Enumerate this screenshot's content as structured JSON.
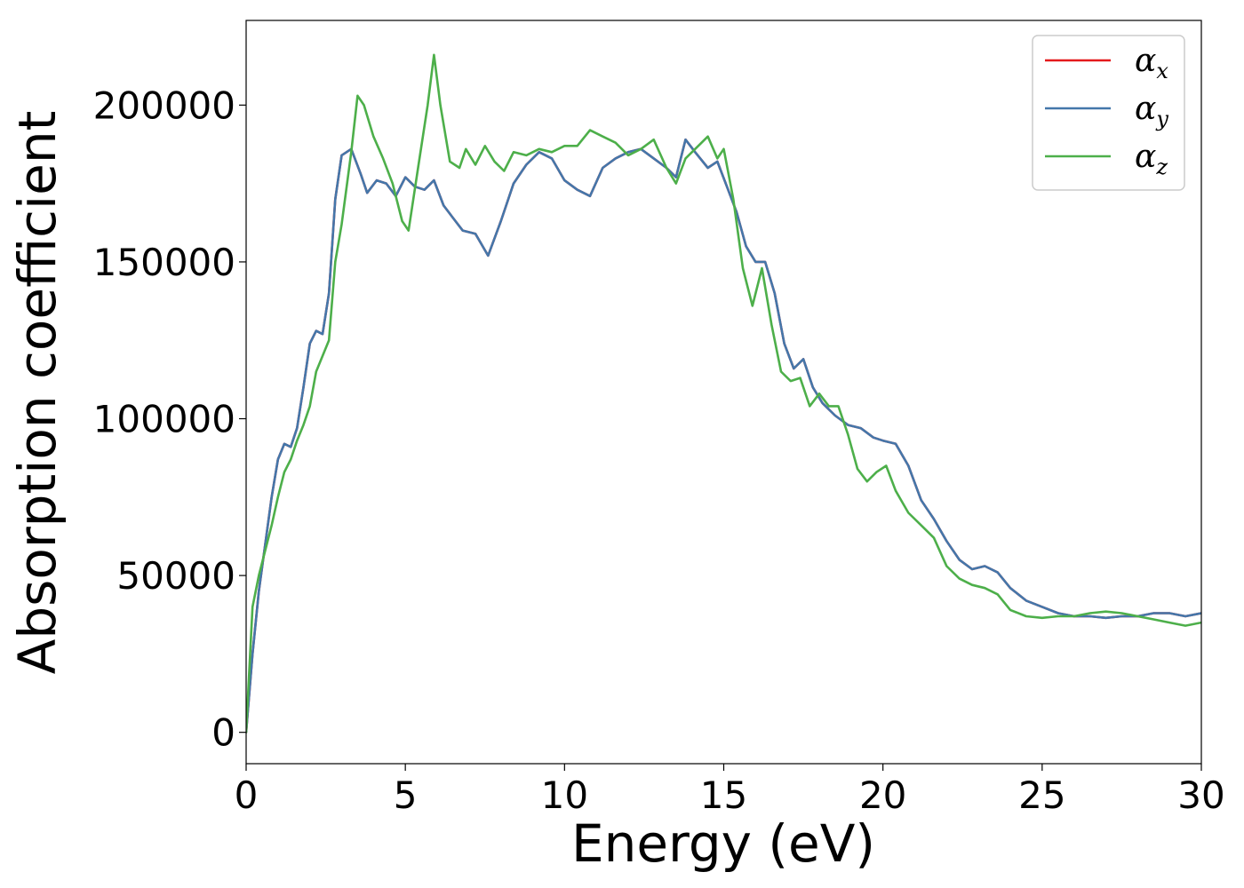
{
  "chart_data": {
    "type": "line",
    "title": "",
    "xlabel": "Energy (eV)",
    "ylabel": "Absorption coefficient",
    "xlim": [
      0,
      30
    ],
    "ylim": [
      -10000,
      227000
    ],
    "xticks": [
      0,
      5,
      10,
      15,
      20,
      25,
      30
    ],
    "xtick_labels": [
      "0",
      "5",
      "10",
      "15",
      "20",
      "25",
      "30"
    ],
    "yticks": [
      0,
      50000,
      100000,
      150000,
      200000
    ],
    "ytick_labels": [
      "0",
      "50000",
      "100000",
      "150000",
      "200000"
    ],
    "grid": false,
    "legend_position": "top-right",
    "series": [
      {
        "name": "α_x",
        "legend_base": "α",
        "legend_sub": "x",
        "color": "#e41a1c",
        "x": [
          0,
          0.2,
          0.4,
          0.6,
          0.8,
          1.0,
          1.2,
          1.4,
          1.6,
          1.8,
          2.0,
          2.2,
          2.4,
          2.6,
          2.8,
          3.0,
          3.3,
          3.6,
          3.8,
          4.1,
          4.4,
          4.7,
          5.0,
          5.3,
          5.6,
          5.9,
          6.2,
          6.5,
          6.8,
          7.2,
          7.6,
          8.0,
          8.4,
          8.8,
          9.2,
          9.6,
          10.0,
          10.4,
          10.8,
          11.2,
          11.6,
          12.0,
          12.4,
          12.8,
          13.2,
          13.5,
          13.8,
          14.1,
          14.5,
          14.8,
          15.1,
          15.4,
          15.7,
          16.0,
          16.3,
          16.6,
          16.9,
          17.2,
          17.5,
          17.8,
          18.1,
          18.5,
          18.9,
          19.3,
          19.7,
          20.0,
          20.4,
          20.8,
          21.2,
          21.6,
          22.0,
          22.4,
          22.8,
          23.2,
          23.6,
          24.0,
          24.5,
          25.0,
          25.5,
          26.0,
          26.5,
          27.0,
          27.5,
          28.0,
          28.5,
          29.0,
          29.5,
          30.0
        ],
        "y": [
          0,
          25000,
          45000,
          60000,
          75000,
          87000,
          92000,
          91000,
          97000,
          110000,
          124000,
          128000,
          127000,
          140000,
          170000,
          184000,
          186000,
          178000,
          172000,
          176000,
          175000,
          171000,
          177000,
          174000,
          173000,
          176000,
          168000,
          164000,
          160000,
          159000,
          152000,
          163000,
          175000,
          181000,
          185000,
          183000,
          176000,
          173000,
          171000,
          180000,
          183000,
          185000,
          186000,
          183000,
          180000,
          177000,
          189000,
          185000,
          180000,
          182000,
          174000,
          166000,
          155000,
          150000,
          150000,
          140000,
          124000,
          116000,
          119000,
          110000,
          105000,
          101000,
          98000,
          97000,
          94000,
          93000,
          92000,
          85000,
          74000,
          68000,
          61000,
          55000,
          52000,
          53000,
          51000,
          46000,
          42000,
          40000,
          38000,
          37000,
          37000,
          36500,
          37000,
          37000,
          38000,
          38000,
          37000,
          38000
        ]
      },
      {
        "name": "α_y",
        "legend_base": "α",
        "legend_sub": "y",
        "color": "#4477aa",
        "x": [
          0,
          0.2,
          0.4,
          0.6,
          0.8,
          1.0,
          1.2,
          1.4,
          1.6,
          1.8,
          2.0,
          2.2,
          2.4,
          2.6,
          2.8,
          3.0,
          3.3,
          3.6,
          3.8,
          4.1,
          4.4,
          4.7,
          5.0,
          5.3,
          5.6,
          5.9,
          6.2,
          6.5,
          6.8,
          7.2,
          7.6,
          8.0,
          8.4,
          8.8,
          9.2,
          9.6,
          10.0,
          10.4,
          10.8,
          11.2,
          11.6,
          12.0,
          12.4,
          12.8,
          13.2,
          13.5,
          13.8,
          14.1,
          14.5,
          14.8,
          15.1,
          15.4,
          15.7,
          16.0,
          16.3,
          16.6,
          16.9,
          17.2,
          17.5,
          17.8,
          18.1,
          18.5,
          18.9,
          19.3,
          19.7,
          20.0,
          20.4,
          20.8,
          21.2,
          21.6,
          22.0,
          22.4,
          22.8,
          23.2,
          23.6,
          24.0,
          24.5,
          25.0,
          25.5,
          26.0,
          26.5,
          27.0,
          27.5,
          28.0,
          28.5,
          29.0,
          29.5,
          30.0
        ],
        "y": [
          0,
          25000,
          45000,
          60000,
          75000,
          87000,
          92000,
          91000,
          97000,
          110000,
          124000,
          128000,
          127000,
          140000,
          170000,
          184000,
          186000,
          178000,
          172000,
          176000,
          175000,
          171000,
          177000,
          174000,
          173000,
          176000,
          168000,
          164000,
          160000,
          159000,
          152000,
          163000,
          175000,
          181000,
          185000,
          183000,
          176000,
          173000,
          171000,
          180000,
          183000,
          185000,
          186000,
          183000,
          180000,
          177000,
          189000,
          185000,
          180000,
          182000,
          174000,
          166000,
          155000,
          150000,
          150000,
          140000,
          124000,
          116000,
          119000,
          110000,
          105000,
          101000,
          98000,
          97000,
          94000,
          93000,
          92000,
          85000,
          74000,
          68000,
          61000,
          55000,
          52000,
          53000,
          51000,
          46000,
          42000,
          40000,
          38000,
          37000,
          37000,
          36500,
          37000,
          37000,
          38000,
          38000,
          37000,
          38000
        ]
      },
      {
        "name": "α_z",
        "legend_base": "α",
        "legend_sub": "z",
        "color": "#4daf4a",
        "x": [
          0,
          0.2,
          0.4,
          0.6,
          0.8,
          1.0,
          1.2,
          1.4,
          1.6,
          1.8,
          2.0,
          2.2,
          2.4,
          2.6,
          2.8,
          3.0,
          3.3,
          3.5,
          3.7,
          4.0,
          4.3,
          4.6,
          4.9,
          5.1,
          5.4,
          5.7,
          5.9,
          6.1,
          6.4,
          6.7,
          6.9,
          7.2,
          7.5,
          7.8,
          8.1,
          8.4,
          8.8,
          9.2,
          9.6,
          10.0,
          10.4,
          10.8,
          11.2,
          11.6,
          12.0,
          12.4,
          12.8,
          13.2,
          13.5,
          13.8,
          14.1,
          14.5,
          14.8,
          15.0,
          15.3,
          15.6,
          15.9,
          16.2,
          16.5,
          16.8,
          17.1,
          17.4,
          17.7,
          18.0,
          18.3,
          18.6,
          18.9,
          19.2,
          19.5,
          19.8,
          20.1,
          20.4,
          20.8,
          21.2,
          21.6,
          22.0,
          22.4,
          22.8,
          23.2,
          23.6,
          24.0,
          24.5,
          25.0,
          25.5,
          26.0,
          26.5,
          27.0,
          27.5,
          28.0,
          28.5,
          29.0,
          29.5,
          30.0
        ],
        "y": [
          0,
          40000,
          50000,
          58000,
          66000,
          75000,
          83000,
          87000,
          93000,
          98000,
          104000,
          115000,
          120000,
          125000,
          150000,
          162000,
          185000,
          203000,
          200000,
          190000,
          183000,
          175000,
          163000,
          160000,
          180000,
          200000,
          216000,
          200000,
          182000,
          180000,
          186000,
          181000,
          187000,
          182000,
          179000,
          185000,
          184000,
          186000,
          185000,
          187000,
          187000,
          192000,
          190000,
          188000,
          184000,
          186000,
          189000,
          180000,
          175000,
          183000,
          186000,
          190000,
          183000,
          186000,
          170000,
          148000,
          136000,
          148000,
          130000,
          115000,
          112000,
          113000,
          104000,
          108000,
          104000,
          104000,
          95000,
          84000,
          80000,
          83000,
          85000,
          77000,
          70000,
          66000,
          62000,
          53000,
          49000,
          47000,
          46000,
          44000,
          39000,
          37000,
          36500,
          37000,
          37000,
          38000,
          38500,
          38000,
          37000,
          36000,
          35000,
          34000,
          35000
        ]
      }
    ]
  }
}
